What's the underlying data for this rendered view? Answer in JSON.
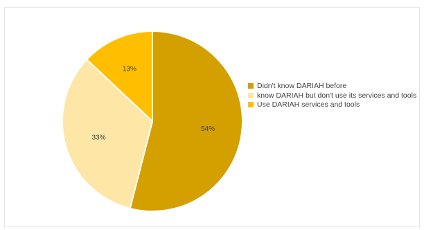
{
  "chart_data": {
    "type": "pie",
    "slices": [
      {
        "label": "Didn't know DARIAH before",
        "value": 54,
        "value_label": "54%",
        "color": "#D3A000"
      },
      {
        "label": "know DARIAH but don't use its services and tools",
        "value": 33,
        "value_label": "33%",
        "color": "#FDE6A6"
      },
      {
        "label": "Use DARIAH services and tools",
        "value": 13,
        "value_label": "13%",
        "color": "#FFBF00"
      }
    ],
    "legend_position": "right",
    "start_angle": "top, clockwise"
  }
}
